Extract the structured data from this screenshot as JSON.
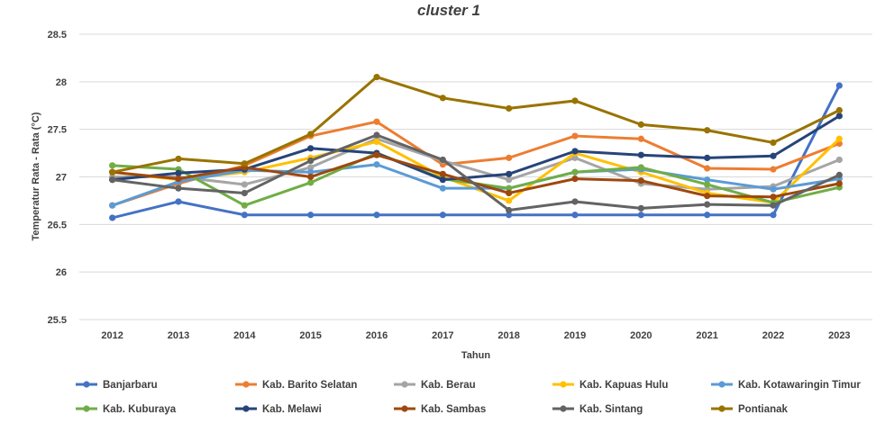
{
  "chart_data": {
    "type": "line",
    "title": "cluster 1",
    "xlabel": "Tahun",
    "ylabel": "Temperatur Rata - Rata (°C)",
    "ylim": [
      25.5,
      28.5
    ],
    "yticks": [
      "25.5",
      "26",
      "26.5",
      "27",
      "27.5",
      "28",
      "28.5"
    ],
    "grid": "horizontal",
    "legend_position": "bottom",
    "categories": [
      "2012",
      "2013",
      "2014",
      "2015",
      "2016",
      "2017",
      "2018",
      "2019",
      "2020",
      "2021",
      "2022",
      "2023"
    ],
    "series": [
      {
        "name": "Banjarbaru",
        "color": "#4472c4",
        "values": [
          26.57,
          26.74,
          26.6,
          26.6,
          26.6,
          26.6,
          26.6,
          26.6,
          26.6,
          26.6,
          26.6,
          27.96
        ]
      },
      {
        "name": "Kab. Barito Selatan",
        "color": "#ed7d31",
        "values": [
          26.7,
          26.93,
          27.12,
          27.43,
          27.58,
          27.13,
          27.2,
          27.43,
          27.4,
          27.09,
          27.08,
          27.35
        ]
      },
      {
        "name": "Kab. Berau",
        "color": "#a5a5a5",
        "values": [
          27.0,
          27.0,
          26.92,
          27.1,
          27.4,
          27.17,
          26.97,
          27.2,
          26.93,
          26.87,
          26.9,
          27.18
        ]
      },
      {
        "name": "Kab. Kapuas Hulu",
        "color": "#ffc000",
        "values": [
          27.05,
          26.97,
          27.05,
          27.2,
          27.37,
          27.0,
          26.75,
          27.25,
          27.05,
          26.83,
          26.73,
          27.4
        ]
      },
      {
        "name": "Kab. Kotawaringin Timur",
        "color": "#5b9bd5",
        "values": [
          26.7,
          26.95,
          27.07,
          27.05,
          27.13,
          26.88,
          26.88,
          27.05,
          27.08,
          26.97,
          26.87,
          26.98
        ]
      },
      {
        "name": "Kab. Kuburaya",
        "color": "#70ad47",
        "values": [
          27.12,
          27.08,
          26.7,
          26.94,
          27.25,
          26.98,
          26.88,
          27.05,
          27.1,
          26.92,
          26.73,
          26.89
        ]
      },
      {
        "name": "Kab. Melawi",
        "color": "#264478",
        "values": [
          26.97,
          27.04,
          27.08,
          27.3,
          27.25,
          26.97,
          27.03,
          27.27,
          27.23,
          27.2,
          27.22,
          27.64
        ]
      },
      {
        "name": "Kab. Sambas",
        "color": "#9e480e",
        "values": [
          27.05,
          26.98,
          27.1,
          27.0,
          27.23,
          27.03,
          26.83,
          26.98,
          26.96,
          26.8,
          26.79,
          26.93
        ]
      },
      {
        "name": "Kab. Sintang",
        "color": "#636363",
        "values": [
          26.97,
          26.88,
          26.83,
          27.17,
          27.44,
          27.18,
          26.65,
          26.74,
          26.67,
          26.71,
          26.7,
          27.02
        ]
      },
      {
        "name": "Pontianak",
        "color": "#997300",
        "values": [
          27.05,
          27.19,
          27.14,
          27.45,
          28.05,
          27.83,
          27.72,
          27.8,
          27.55,
          27.49,
          27.36,
          27.7
        ]
      }
    ]
  }
}
